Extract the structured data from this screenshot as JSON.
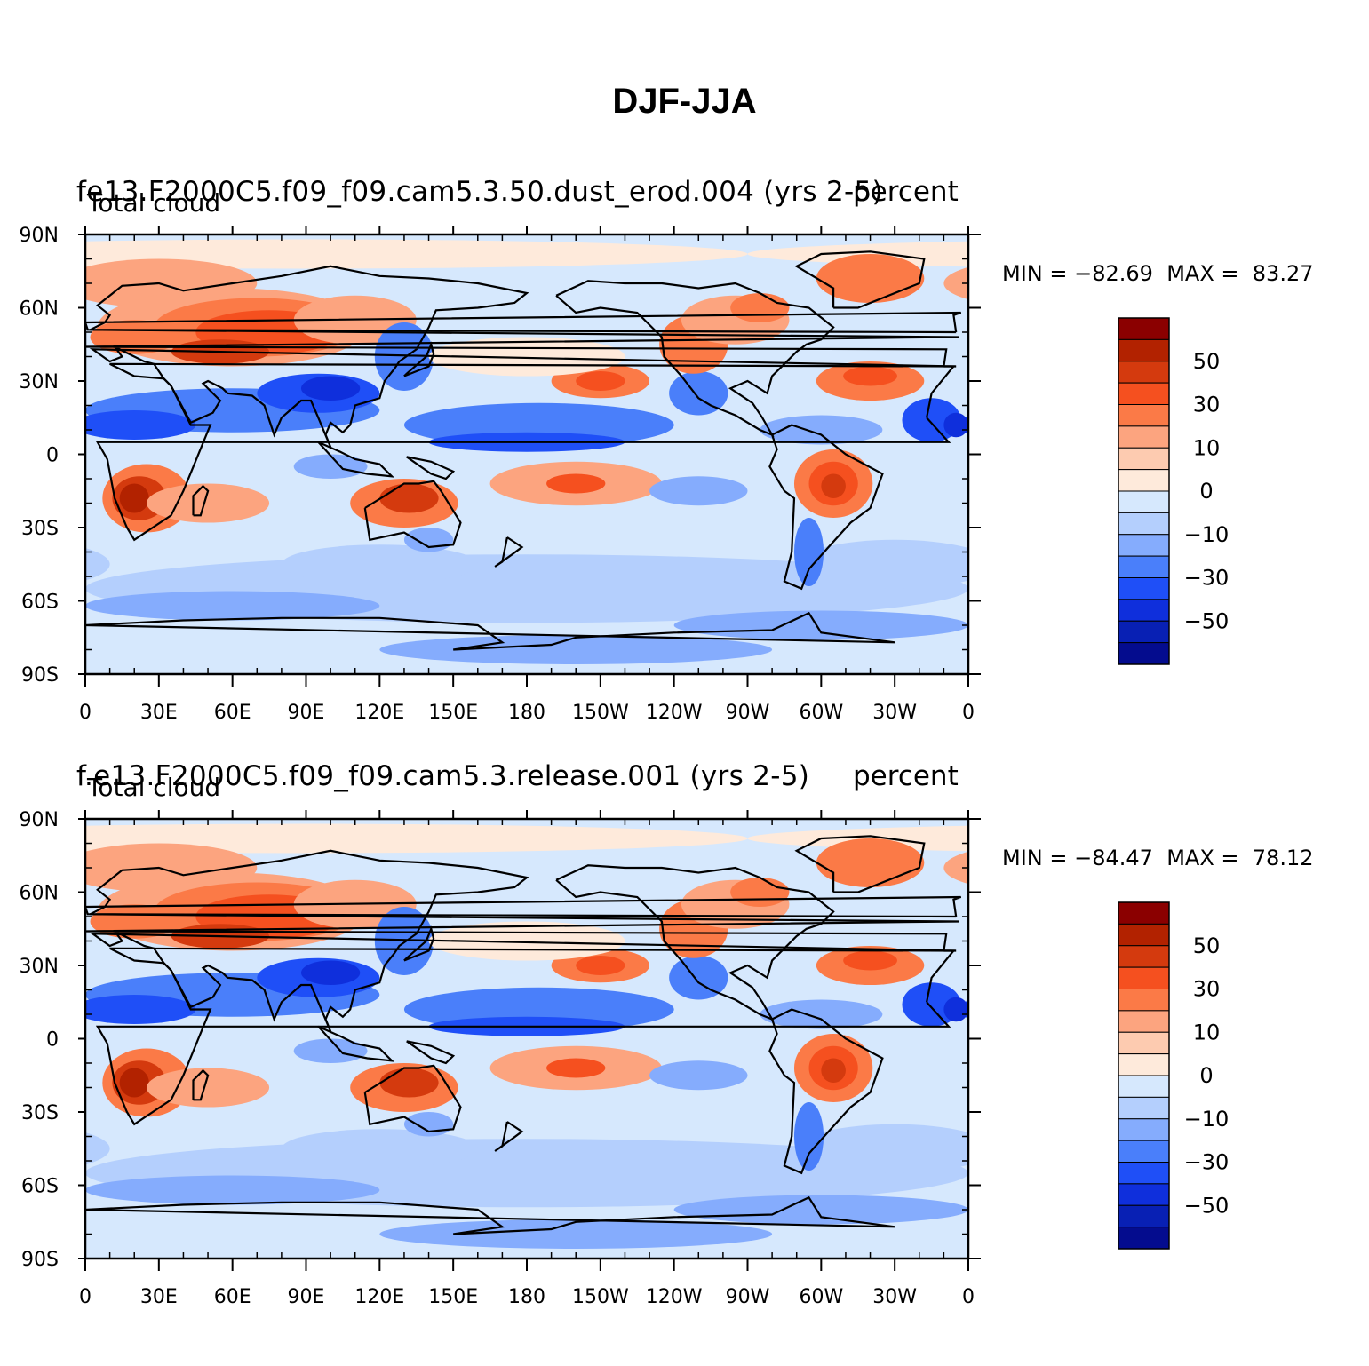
{
  "figure": {
    "title": "DJF-JJA"
  },
  "panels": [
    {
      "case_title": "fe13.F2000C5.f09_f09.cam5.3.50.dust_erod.004  (yrs 2-5)",
      "variable": "Total cloud",
      "units": "percent",
      "min_label": "MIN = ",
      "min_value": "−82.69",
      "max_label": "MAX = ",
      "max_value": "83.27"
    },
    {
      "case_title": "f.e13.F2000C5.f09_f09.cam5.3.release.001  (yrs 2-5)",
      "variable": "Total cloud",
      "units": "percent",
      "min_label": "MIN = ",
      "min_value": "−84.47",
      "max_label": "MAX = ",
      "max_value": "78.12"
    }
  ],
  "axes": {
    "lat_ticks": [
      "90N",
      "60N",
      "30N",
      "0",
      "30S",
      "60S",
      "90S"
    ],
    "lon_ticks": [
      "0",
      "30E",
      "60E",
      "90E",
      "120E",
      "150E",
      "180",
      "150W",
      "120W",
      "90W",
      "60W",
      "30W",
      "0"
    ]
  },
  "colorbar": {
    "colors": [
      "#8b0000",
      "#b22200",
      "#d43a0e",
      "#f5501f",
      "#fb7a47",
      "#fca47f",
      "#fdcbb0",
      "#feeadb",
      "#d6e8fd",
      "#b4cffd",
      "#85acfd",
      "#4a7ffa",
      "#1f4ff7",
      "#0f2fdc",
      "#0820b4",
      "#040c8e"
    ],
    "labels": [
      "50",
      "30",
      "10",
      "0",
      "−10",
      "−30",
      "−50"
    ]
  },
  "colors": {
    "ocean_base": "#d6e8fd",
    "coastline": "#000000"
  }
}
